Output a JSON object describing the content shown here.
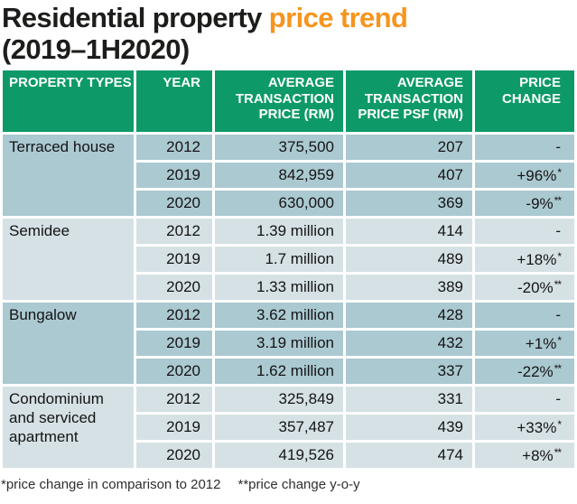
{
  "title": {
    "black": "Residential property",
    "orange": "price trend",
    "line2": "(2019–1H2020)"
  },
  "colors": {
    "header_green": "#0d9a68",
    "row_dark": "#abc9d1",
    "row_light": "#d5e1e5",
    "accent_orange": "#f7941d"
  },
  "chart_data": {
    "type": "table",
    "title": "Residential property price trend (2019–1H2020)",
    "columns": [
      "PROPERTY TYPES",
      "YEAR",
      "AVERAGE TRANSACTION PRICE (RM)",
      "AVERAGE TRANSACTION PRICE PSF (RM)",
      "PRICE CHANGE"
    ],
    "columns_display": [
      "PROPERTY TYPES",
      "YEAR",
      "AVERAGE\nTRANSACTION\nPRICE (RM)",
      "AVERAGE\nTRANSACTION\nPRICE PSF (RM)",
      "PRICE\nCHANGE"
    ],
    "groups": [
      {
        "name": "Terraced house",
        "rows": [
          {
            "year": "2012",
            "price": "375,500",
            "psf": "207",
            "change": "-",
            "change_note": ""
          },
          {
            "year": "2019",
            "price": "842,959",
            "psf": "407",
            "change": "+96%",
            "change_note": "*"
          },
          {
            "year": "2020",
            "price": "630,000",
            "psf": "369",
            "change": "-9%",
            "change_note": "**"
          }
        ]
      },
      {
        "name": "Semidee",
        "rows": [
          {
            "year": "2012",
            "price": "1.39 million",
            "psf": "414",
            "change": "-",
            "change_note": ""
          },
          {
            "year": "2019",
            "price": "1.7 million",
            "psf": "489",
            "change": "+18%",
            "change_note": "*"
          },
          {
            "year": "2020",
            "price": "1.33 million",
            "psf": "389",
            "change": "-20%",
            "change_note": "**"
          }
        ]
      },
      {
        "name": "Bungalow",
        "rows": [
          {
            "year": "2012",
            "price": "3.62 million",
            "psf": "428",
            "change": "-",
            "change_note": ""
          },
          {
            "year": "2019",
            "price": "3.19 million",
            "psf": "432",
            "change": "+1%",
            "change_note": "*"
          },
          {
            "year": "2020",
            "price": "1.62 million",
            "psf": "337",
            "change": "-22%",
            "change_note": "**"
          }
        ]
      },
      {
        "name": "Condominium and serviced apartment",
        "rows": [
          {
            "year": "2012",
            "price": "325,849",
            "psf": "331",
            "change": "-",
            "change_note": ""
          },
          {
            "year": "2019",
            "price": "357,487",
            "psf": "439",
            "change": "+33%",
            "change_note": "*"
          },
          {
            "year": "2020",
            "price": "419,526",
            "psf": "474",
            "change": "+8%",
            "change_note": "**"
          }
        ]
      }
    ],
    "footnotes": [
      "*price change in comparison to 2012",
      "**price change y-o-y"
    ]
  }
}
